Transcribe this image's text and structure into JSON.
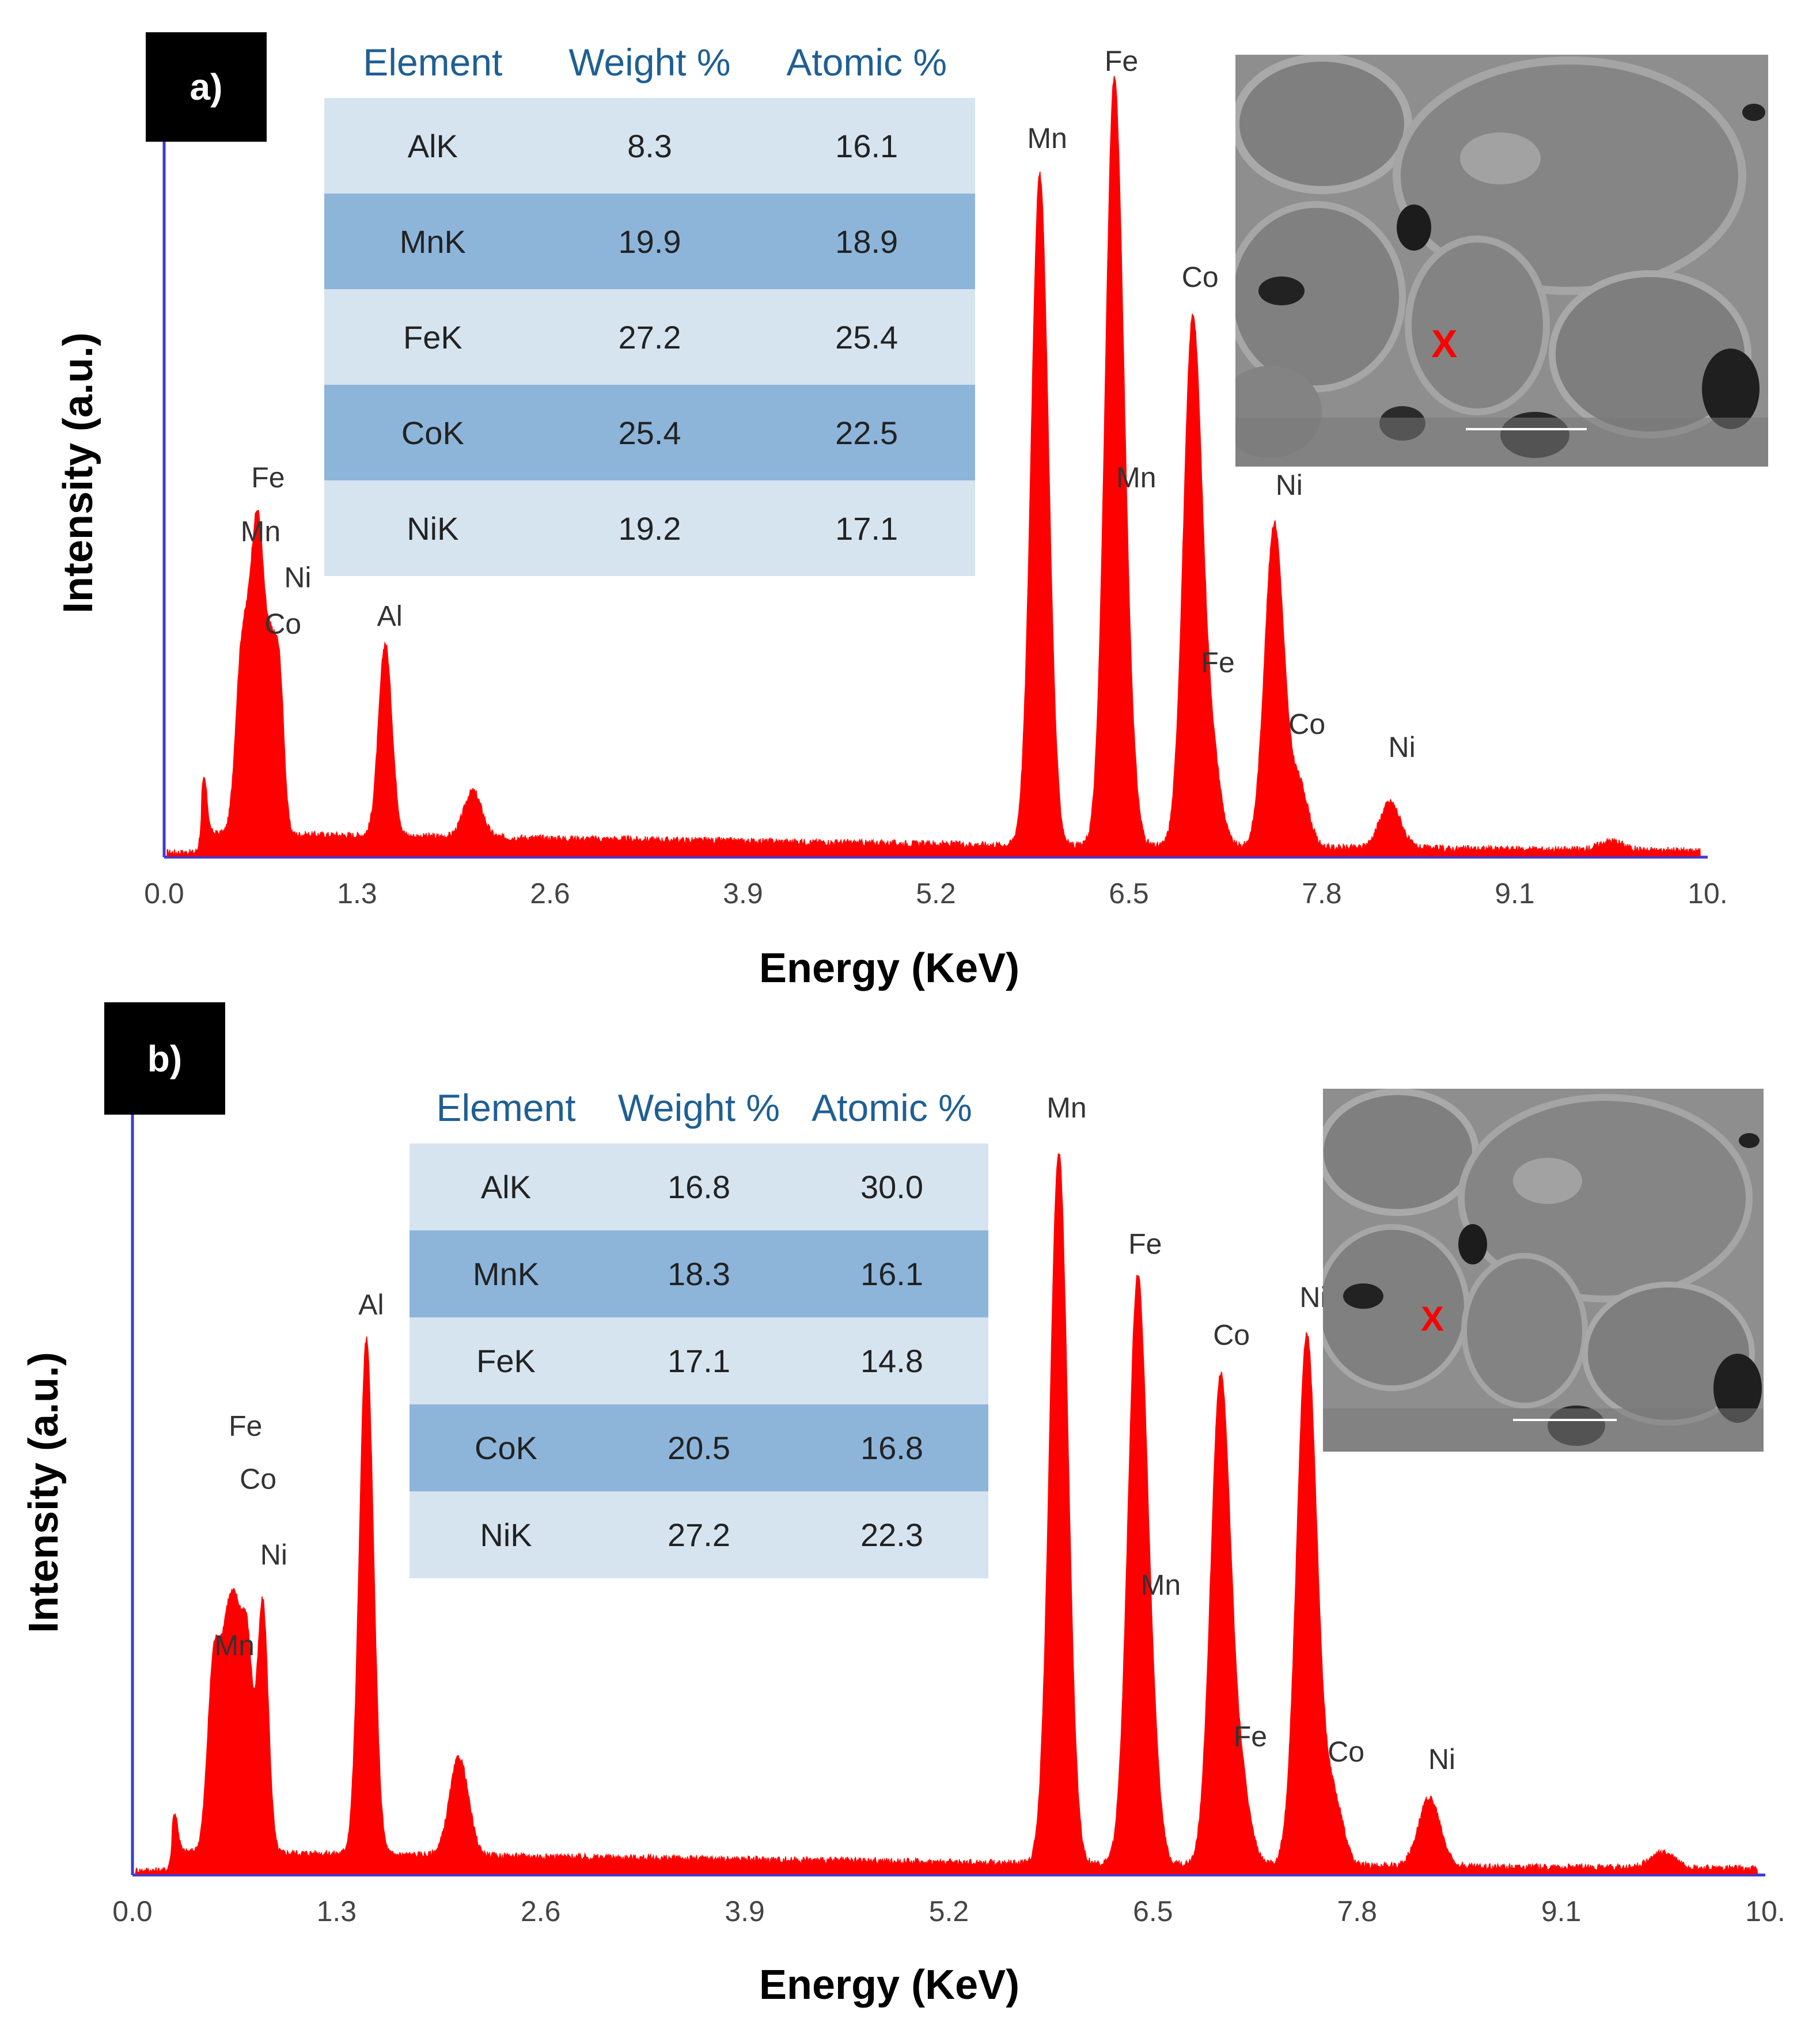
{
  "chart_data": [
    {
      "type": "line",
      "panel_label": "a)",
      "xlabel": "Energy (KeV)",
      "ylabel": "Intensity (a.u.)",
      "x_ticks": [
        "0.0",
        "1.3",
        "2.6",
        "3.9",
        "5.2",
        "6.5",
        "7.8",
        "9.1",
        "10."
      ],
      "xlim": [
        0,
        10.4
      ],
      "ylim": [
        0,
        100
      ],
      "series": [
        {
          "name": "EDS spectrum",
          "color": "#ff0000",
          "peaks": [
            {
              "e": 0.27,
              "h": 7,
              "w": 0.02
            },
            {
              "e": 0.52,
              "h": 22,
              "w": 0.04
            },
            {
              "e": 0.6,
              "h": 27,
              "w": 0.04
            },
            {
              "e": 0.65,
              "h": 24,
              "w": 0.035
            },
            {
              "e": 0.72,
              "h": 21,
              "w": 0.035
            },
            {
              "e": 0.78,
              "h": 18,
              "w": 0.03
            },
            {
              "e": 1.49,
              "h": 25,
              "w": 0.045
            },
            {
              "e": 2.08,
              "h": 6,
              "w": 0.06
            },
            {
              "e": 5.9,
              "h": 87,
              "w": 0.058
            },
            {
              "e": 6.4,
              "h": 97,
              "w": 0.06
            },
            {
              "e": 6.49,
              "h": 10,
              "w": 0.055
            },
            {
              "e": 6.93,
              "h": 68,
              "w": 0.062
            },
            {
              "e": 7.06,
              "h": 11,
              "w": 0.06
            },
            {
              "e": 7.48,
              "h": 42,
              "w": 0.064
            },
            {
              "e": 7.65,
              "h": 8,
              "w": 0.06
            },
            {
              "e": 8.26,
              "h": 6,
              "w": 0.07
            },
            {
              "e": 9.75,
              "h": 1.2,
              "w": 0.08
            }
          ]
        }
      ],
      "peak_labels": [
        {
          "text": "Fe",
          "e": 0.7,
          "h": 48
        },
        {
          "text": "Mn",
          "e": 0.65,
          "h": 41
        },
        {
          "text": "Ni",
          "e": 0.9,
          "h": 35
        },
        {
          "text": "Co",
          "e": 0.8,
          "h": 29
        },
        {
          "text": "Al",
          "e": 1.52,
          "h": 30
        },
        {
          "text": "Mn",
          "e": 5.95,
          "h": 92
        },
        {
          "text": "Fe",
          "e": 6.45,
          "h": 102
        },
        {
          "text": "Co",
          "e": 6.98,
          "h": 74
        },
        {
          "text": "Mn",
          "e": 6.55,
          "h": 48
        },
        {
          "text": "Ni",
          "e": 7.58,
          "h": 47
        },
        {
          "text": "Fe",
          "e": 7.1,
          "h": 24
        },
        {
          "text": "Co",
          "e": 7.7,
          "h": 16
        },
        {
          "text": "Ni",
          "e": 8.34,
          "h": 13
        }
      ],
      "table": {
        "headers": [
          "Element",
          "Weight %",
          "Atomic %"
        ],
        "rows": [
          [
            "AlK",
            "8.3",
            "16.1"
          ],
          [
            "MnK",
            "19.9",
            "18.9"
          ],
          [
            "FeK",
            "27.2",
            "25.4"
          ],
          [
            "CoK",
            "25.4",
            "22.5"
          ],
          [
            "NiK",
            "19.2",
            "17.1"
          ]
        ]
      },
      "sem_marker": "X"
    },
    {
      "type": "line",
      "panel_label": "b)",
      "xlabel": "Energy (KeV)",
      "ylabel": "Intensity (a.u.)",
      "x_ticks": [
        "0.0",
        "1.3",
        "2.6",
        "3.9",
        "5.2",
        "6.5",
        "7.8",
        "9.1",
        "10."
      ],
      "xlim": [
        0,
        10.4
      ],
      "ylim": [
        0,
        100
      ],
      "series": [
        {
          "name": "EDS spectrum",
          "color": "#ff0000",
          "peaks": [
            {
              "e": 0.27,
              "h": 5,
              "w": 0.02
            },
            {
              "e": 0.52,
              "h": 26,
              "w": 0.04
            },
            {
              "e": 0.6,
              "h": 23,
              "w": 0.035
            },
            {
              "e": 0.66,
              "h": 25,
              "w": 0.035
            },
            {
              "e": 0.73,
              "h": 27,
              "w": 0.035
            },
            {
              "e": 0.83,
              "h": 33,
              "w": 0.035
            },
            {
              "e": 1.49,
              "h": 68,
              "w": 0.045
            },
            {
              "e": 2.08,
              "h": 13,
              "w": 0.06
            },
            {
              "e": 5.9,
              "h": 94,
              "w": 0.058
            },
            {
              "e": 6.4,
              "h": 75,
              "w": 0.06
            },
            {
              "e": 6.49,
              "h": 10,
              "w": 0.055
            },
            {
              "e": 6.93,
              "h": 64,
              "w": 0.062
            },
            {
              "e": 7.06,
              "h": 10,
              "w": 0.06
            },
            {
              "e": 7.48,
              "h": 70,
              "w": 0.064
            },
            {
              "e": 7.65,
              "h": 9,
              "w": 0.06
            },
            {
              "e": 8.26,
              "h": 9,
              "w": 0.07
            },
            {
              "e": 9.75,
              "h": 2,
              "w": 0.08
            }
          ]
        }
      ],
      "peak_labels": [
        {
          "text": "Fe",
          "e": 0.72,
          "h": 58
        },
        {
          "text": "Co",
          "e": 0.8,
          "h": 51
        },
        {
          "text": "Ni",
          "e": 0.9,
          "h": 41
        },
        {
          "text": "Mn",
          "e": 0.65,
          "h": 29
        },
        {
          "text": "Al",
          "e": 1.52,
          "h": 74
        },
        {
          "text": "Mn",
          "e": 5.95,
          "h": 100
        },
        {
          "text": "Fe",
          "e": 6.45,
          "h": 82
        },
        {
          "text": "Co",
          "e": 7.0,
          "h": 70
        },
        {
          "text": "Mn",
          "e": 6.55,
          "h": 37
        },
        {
          "text": "Ni",
          "e": 7.52,
          "h": 75
        },
        {
          "text": "Fe",
          "e": 7.12,
          "h": 17
        },
        {
          "text": "Co",
          "e": 7.73,
          "h": 15
        },
        {
          "text": "Ni",
          "e": 8.34,
          "h": 14
        }
      ],
      "table": {
        "headers": [
          "Element",
          "Weight %",
          "Atomic %"
        ],
        "rows": [
          [
            "AlK",
            "16.8",
            "30.0"
          ],
          [
            "MnK",
            "18.3",
            "16.1"
          ],
          [
            "FeK",
            "17.1",
            "14.8"
          ],
          [
            "CoK",
            "20.5",
            "16.8"
          ],
          [
            "NiK",
            "27.2",
            "22.3"
          ]
        ]
      },
      "sem_marker": "X"
    }
  ]
}
